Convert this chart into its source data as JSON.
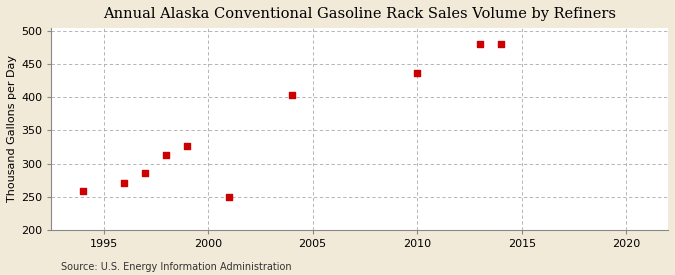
{
  "title": "Annual Alaska Conventional Gasoline Rack Sales Volume by Refiners",
  "ylabel": "Thousand Gallons per Day",
  "source": "Source: U.S. Energy Information Administration",
  "outer_bg": "#f2ead8",
  "plot_bg": "#ffffff",
  "marker_color": "#cc0000",
  "x_values": [
    1994,
    1996,
    1997,
    1998,
    1999,
    2001,
    2004,
    2010,
    2013,
    2014
  ],
  "y_values": [
    258,
    270,
    285,
    313,
    327,
    250,
    403,
    437,
    481,
    481
  ],
  "xlim": [
    1992.5,
    2022
  ],
  "ylim": [
    200,
    505
  ],
  "xticks": [
    1995,
    2000,
    2005,
    2010,
    2015,
    2020
  ],
  "yticks": [
    200,
    250,
    300,
    350,
    400,
    450,
    500
  ],
  "title_fontsize": 10.5,
  "label_fontsize": 8,
  "tick_fontsize": 8,
  "source_fontsize": 7
}
